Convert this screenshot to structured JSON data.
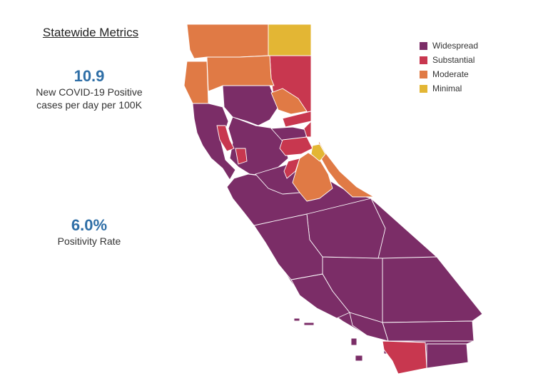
{
  "metrics": {
    "title": "Statewide Metrics",
    "cases": {
      "value": "10.9",
      "label_line1": "New COVID-19 Positive",
      "label_line2": "cases per day per 100K"
    },
    "positivity": {
      "value": "6.0%",
      "label": "Positivity Rate"
    }
  },
  "colors": {
    "widespread": "#7b2d67",
    "substantial": "#c8374f",
    "moderate": "#e07a45",
    "minimal": "#e3b634"
  },
  "legend": [
    {
      "label": "Widespread",
      "tier": "widespread"
    },
    {
      "label": "Substantial",
      "tier": "substantial"
    },
    {
      "label": "Moderate",
      "tier": "moderate"
    },
    {
      "label": "Minimal",
      "tier": "minimal"
    }
  ]
}
